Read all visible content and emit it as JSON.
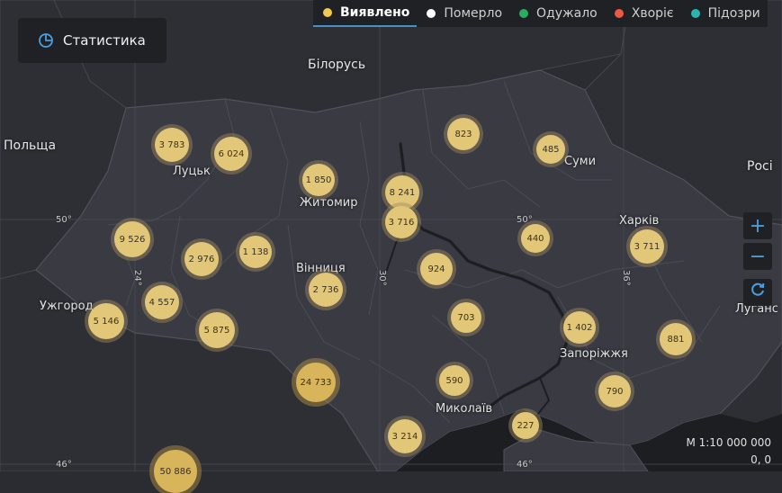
{
  "ui": {
    "stats_button_label": "Статистика",
    "legend": [
      {
        "label": "Виявлено",
        "color": "#f2c94c",
        "active": true
      },
      {
        "label": "Померло",
        "color": "#ffffff",
        "active": false
      },
      {
        "label": "Одужало",
        "color": "#27ae60",
        "active": false
      },
      {
        "label": "Хворіє",
        "color": "#eb5a46",
        "active": false
      },
      {
        "label": "Підозри",
        "color": "#2bb5b0",
        "active": false
      }
    ],
    "zoom_in": "+",
    "zoom_out": "−",
    "scale": "М 1:10 000 000",
    "coords": "0, 0"
  },
  "map": {
    "labels": {
      "poland": "Польща",
      "belarus": "Білорусь",
      "russia": "Росі",
      "lutsk": "Луцьк",
      "zhytomyr": "Житомир",
      "sumy": "Суми",
      "kharkiv": "Харків",
      "vinnytsia": "Вінниця",
      "uzhhorod": "Ужгород",
      "zaporizhzhia": "Запоріжжя",
      "mykolaiv": "Миколаїв",
      "luhansk": "Луганс"
    },
    "grid_labels": {
      "lat_50_left": "50°",
      "lat_50_mid": "50°",
      "lat_46_left": "46°",
      "lat_46_mid": "46°",
      "lon_24": "24°",
      "lon_30": "30°",
      "lon_36": "36°"
    },
    "clusters": [
      {
        "value": "3 783"
      },
      {
        "value": "6 024"
      },
      {
        "value": "1 850"
      },
      {
        "value": "8 241"
      },
      {
        "value": "3 716"
      },
      {
        "value": "823"
      },
      {
        "value": "485"
      },
      {
        "value": "9 526"
      },
      {
        "value": "2 976"
      },
      {
        "value": "1 138"
      },
      {
        "value": "440"
      },
      {
        "value": "3 711"
      },
      {
        "value": "924"
      },
      {
        "value": "2 736"
      },
      {
        "value": "4 557"
      },
      {
        "value": "5 146"
      },
      {
        "value": "5 875"
      },
      {
        "value": "703"
      },
      {
        "value": "1 402"
      },
      {
        "value": "881"
      },
      {
        "value": "24 733"
      },
      {
        "value": "590"
      },
      {
        "value": "790"
      },
      {
        "value": "227"
      },
      {
        "value": "3 214"
      },
      {
        "value": "50 886"
      }
    ]
  }
}
